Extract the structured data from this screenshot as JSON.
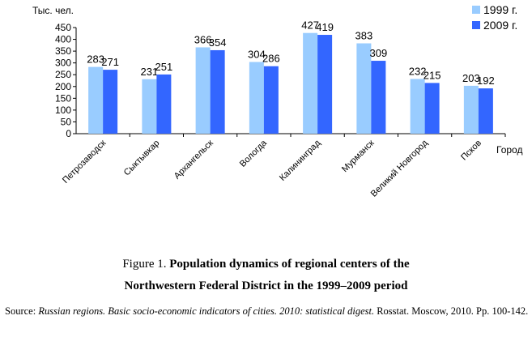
{
  "chart_data": {
    "type": "bar",
    "ylabel": "Тыс. чел.",
    "xlabel": "Город",
    "ylim": [
      0,
      450
    ],
    "yticks": [
      0,
      50,
      100,
      150,
      200,
      250,
      300,
      350,
      400,
      450
    ],
    "grid": false,
    "legend_position": "top-right",
    "categories": [
      "Петрозаводск",
      "Сыктывкар",
      "Архангельск",
      "Вологда",
      "Калининград",
      "Мурманск",
      "Великий Новгород",
      "Псков"
    ],
    "series": [
      {
        "name": "1999 г.",
        "color": "#99ccff",
        "values": [
          283,
          231,
          366,
          304,
          427,
          383,
          232,
          203
        ]
      },
      {
        "name": "2009 г.",
        "color": "#3366ff",
        "values": [
          271,
          251,
          354,
          286,
          419,
          309,
          215,
          192
        ]
      }
    ]
  },
  "caption": {
    "prefix": "Figure 1. ",
    "title_line1": "Population dynamics of regional centers of the",
    "title_line2": "Northwestern Federal District in the 1999–2009 period"
  },
  "source": {
    "label": "Source: ",
    "title": "Russian regions. Basic socio-economic indicators of cities. 2010: statistical digest.",
    "rest": " Rosstat. Moscow, 2010. Pp. 100-142."
  }
}
